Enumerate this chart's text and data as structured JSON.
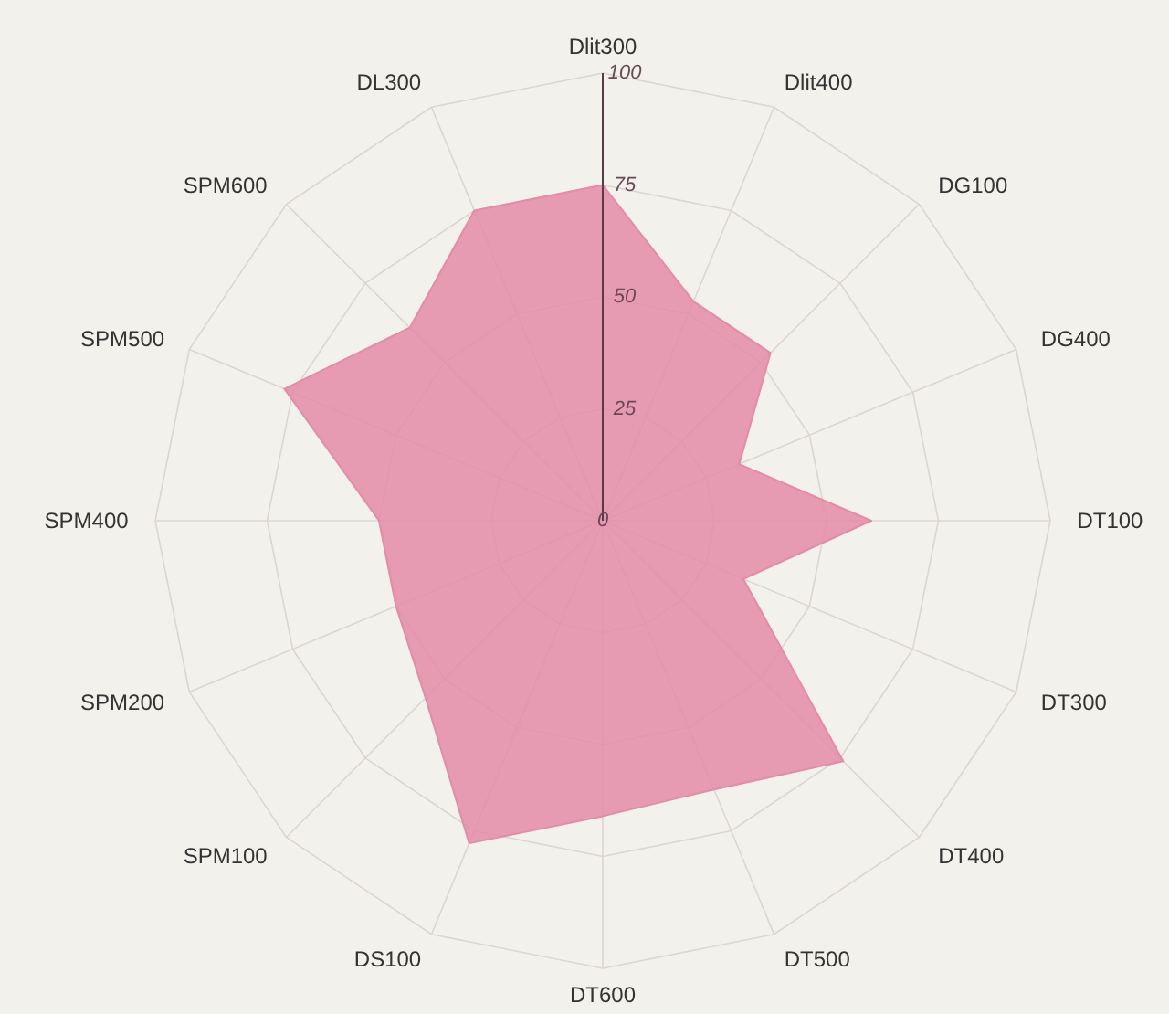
{
  "chart_data": {
    "type": "radar",
    "categories": [
      "Dlit300",
      "Dlit400",
      "DG100",
      "DG400",
      "DT100",
      "DT300",
      "DT400",
      "DT500",
      "DT600",
      "DS100",
      "SPM100",
      "SPM200",
      "SPM400",
      "SPM500",
      "SPM600",
      "DL300"
    ],
    "series": [
      {
        "color": "#e38ca8",
        "values": [
          75,
          53,
          53,
          33,
          60,
          34,
          76,
          65,
          66,
          78,
          56,
          50,
          50,
          77,
          61,
          75
        ]
      }
    ],
    "ylim": [
      0,
      100
    ],
    "yticks": [
      0,
      25,
      50,
      75,
      100
    ],
    "grid": true
  }
}
